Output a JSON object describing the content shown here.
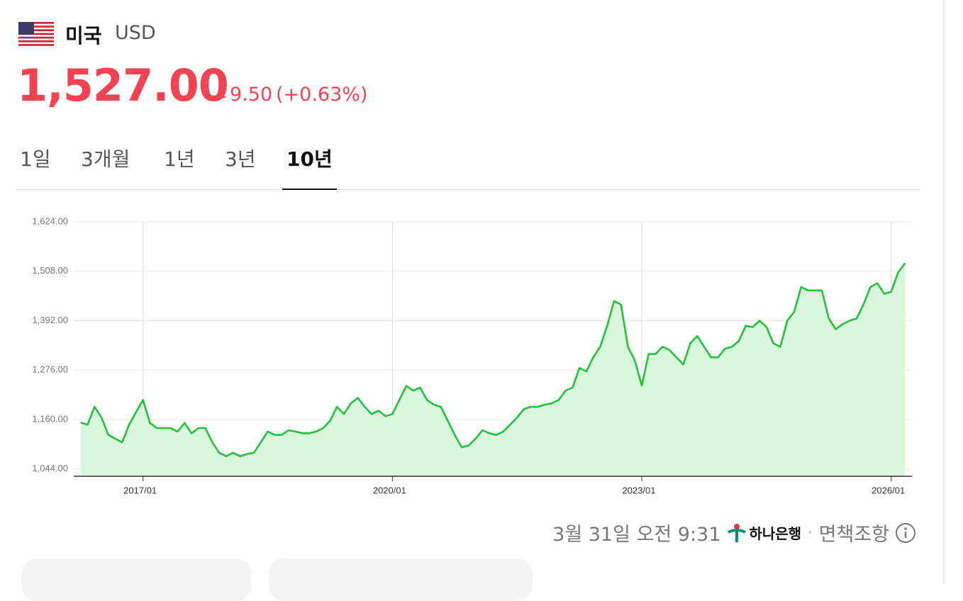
{
  "header": {
    "country": "미국",
    "currency": "USD",
    "price": "1,527.00",
    "change": "9.50",
    "change_pct": "(+0.63%)"
  },
  "tabs": [
    {
      "label": "1일",
      "active": false
    },
    {
      "label": "3개월",
      "active": false
    },
    {
      "label": "1년",
      "active": false
    },
    {
      "label": "3년",
      "active": false
    },
    {
      "label": "10년",
      "active": true
    }
  ],
  "chart_data": {
    "type": "line",
    "x": [
      "2016/04",
      "2016/05",
      "2016/06",
      "2016/07",
      "2016/08",
      "2016/09",
      "2016/10",
      "2016/11",
      "2016/12",
      "2017/01",
      "2017/02",
      "2017/03",
      "2017/04",
      "2017/05",
      "2017/06",
      "2017/07",
      "2017/08",
      "2017/09",
      "2017/10",
      "2017/11",
      "2017/12",
      "2018/01",
      "2018/02",
      "2018/03",
      "2018/04",
      "2018/05",
      "2018/06",
      "2018/07",
      "2018/08",
      "2018/09",
      "2018/10",
      "2018/11",
      "2018/12",
      "2019/01",
      "2019/02",
      "2019/03",
      "2019/04",
      "2019/05",
      "2019/06",
      "2019/07",
      "2019/08",
      "2019/09",
      "2019/10",
      "2019/11",
      "2019/12",
      "2020/01",
      "2020/02",
      "2020/03",
      "2020/04",
      "2020/05",
      "2020/06",
      "2020/07",
      "2020/08",
      "2020/09",
      "2020/10",
      "2020/11",
      "2020/12",
      "2021/01",
      "2021/02",
      "2021/03",
      "2021/04",
      "2021/05",
      "2021/06",
      "2021/07",
      "2021/08",
      "2021/09",
      "2021/10",
      "2021/11",
      "2021/12",
      "2022/01",
      "2022/02",
      "2022/03",
      "2022/04",
      "2022/05",
      "2022/06",
      "2022/07",
      "2022/08",
      "2022/09",
      "2022/10",
      "2022/11",
      "2022/12",
      "2023/01",
      "2023/02",
      "2023/03",
      "2023/04",
      "2023/05",
      "2023/06",
      "2023/07",
      "2023/08",
      "2023/09",
      "2023/10",
      "2023/11",
      "2023/12",
      "2024/01",
      "2024/02",
      "2024/03",
      "2024/04",
      "2024/05",
      "2024/06",
      "2024/07",
      "2024/08",
      "2024/09",
      "2024/10",
      "2024/11",
      "2024/12",
      "2025/01",
      "2025/02",
      "2025/03",
      "2025/04",
      "2025/05",
      "2025/06",
      "2025/07",
      "2025/08",
      "2025/09",
      "2025/10",
      "2025/11",
      "2025/12",
      "2026/01",
      "2026/02",
      "2026/03"
    ],
    "series": [
      {
        "color": "#22c23a",
        "fill": "#d9f5dc",
        "values": [
          1153,
          1148,
          1190,
          1165,
          1124,
          1115,
          1107,
          1148,
          1178,
          1206,
          1152,
          1140,
          1140,
          1140,
          1132,
          1152,
          1128,
          1140,
          1140,
          1107,
          1082,
          1074,
          1082,
          1074,
          1079,
          1082,
          1107,
          1132,
          1124,
          1124,
          1135,
          1132,
          1128,
          1128,
          1132,
          1140,
          1157,
          1190,
          1173,
          1198,
          1211,
          1190,
          1173,
          1181,
          1168,
          1173,
          1206,
          1239,
          1228,
          1235,
          1206,
          1195,
          1190,
          1157,
          1124,
          1095,
          1099,
          1115,
          1135,
          1128,
          1124,
          1132,
          1148,
          1165,
          1185,
          1190,
          1190,
          1195,
          1198,
          1206,
          1228,
          1235,
          1281,
          1273,
          1306,
          1331,
          1380,
          1438,
          1430,
          1331,
          1298,
          1240,
          1314,
          1314,
          1331,
          1323,
          1306,
          1289,
          1339,
          1356,
          1331,
          1306,
          1306,
          1326,
          1331,
          1344,
          1380,
          1377,
          1392,
          1377,
          1339,
          1331,
          1392,
          1413,
          1471,
          1463,
          1463,
          1463,
          1397,
          1372,
          1384,
          1392,
          1397,
          1430,
          1471,
          1480,
          1455,
          1460,
          1505,
          1527
        ]
      }
    ],
    "xlim": [
      "2016/03",
      "2026/04"
    ],
    "xticks": [
      "2017/01",
      "2020/01",
      "2023/01",
      "2026/01"
    ],
    "ylim": [
      1027,
      1624
    ],
    "yticks": [
      {
        "value": 1044,
        "label": "1,044.00"
      },
      {
        "value": 1160,
        "label": "1,160.00"
      },
      {
        "value": 1276,
        "label": "1,276.00"
      },
      {
        "value": 1392,
        "label": "1,392.00"
      },
      {
        "value": 1508,
        "label": "1,508.00"
      },
      {
        "value": 1624,
        "label": "1,624.00"
      }
    ],
    "grid": true
  },
  "footer": {
    "timestamp": "3월 31일 오전 9:31",
    "bank": "하나은행",
    "separator": "·",
    "disclaimer": "면책조항"
  }
}
